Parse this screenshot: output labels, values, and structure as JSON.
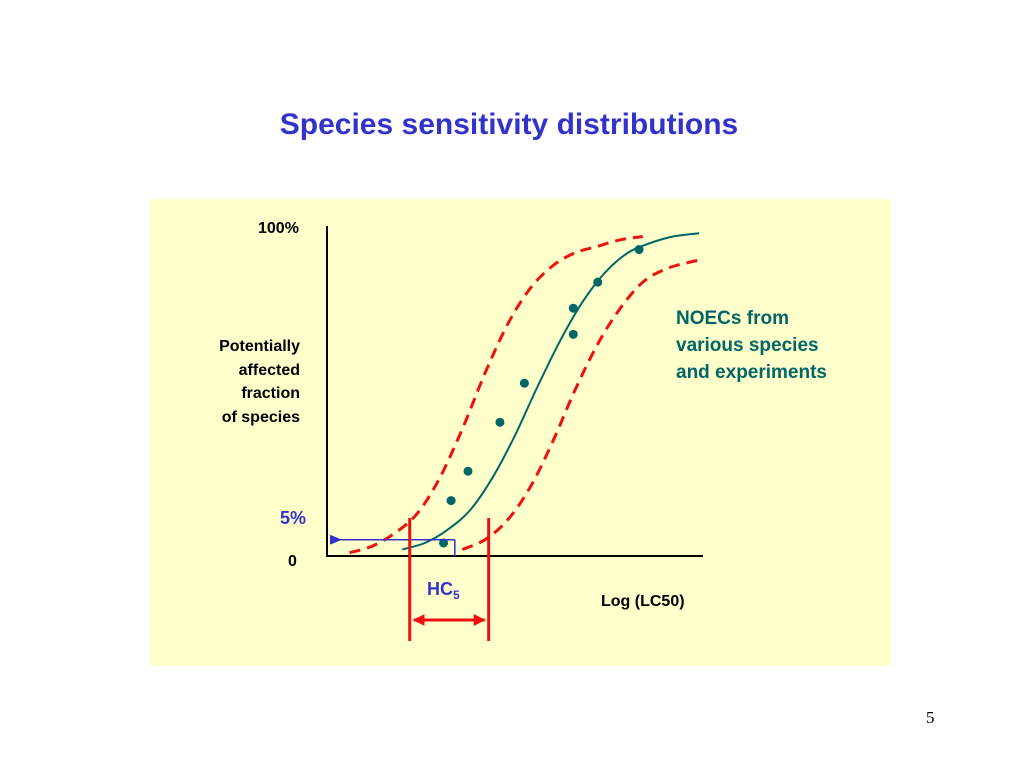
{
  "slide": {
    "title": "Species sensitivity distributions",
    "page_number": "5"
  },
  "colors": {
    "title": "#3333cc",
    "panel_background": "#ffffcc",
    "fitted_curve": "#006666",
    "data_points": "#006666",
    "confidence_band": "#ee1111",
    "hc5_marker": "#ee1111",
    "hc5_guide": "#3333cc"
  },
  "chart_data": {
    "type": "line",
    "title": "",
    "xlabel": "Log (LC50)",
    "ylabel_lines": [
      "Potentially",
      "affected",
      "fraction",
      "of species"
    ],
    "y_ticks": {
      "top": "100%",
      "bottom": "0",
      "marker": "5%"
    },
    "ylim": [
      0,
      100
    ],
    "xlim": [
      0,
      1
    ],
    "x_ticks_shown": false,
    "grid": false,
    "series": [
      {
        "role": "fitted-curve",
        "style": "solid",
        "x": [
          0.2,
          0.26,
          0.32,
          0.38,
          0.44,
          0.5,
          0.56,
          0.62,
          0.68,
          0.74,
          0.8,
          0.86,
          0.92,
          0.99
        ],
        "y": [
          2,
          4,
          8,
          14,
          24,
          37,
          52,
          66,
          78,
          87,
          93,
          96,
          98,
          99
        ]
      },
      {
        "role": "upper-bound",
        "style": "dashed",
        "x": [
          0.06,
          0.12,
          0.18,
          0.24,
          0.3,
          0.36,
          0.42,
          0.48,
          0.54,
          0.6,
          0.66,
          0.72,
          0.78,
          0.84
        ],
        "y": [
          1,
          3,
          7,
          13,
          24,
          39,
          56,
          71,
          82,
          89,
          93,
          95,
          97,
          98
        ]
      },
      {
        "role": "lower-bound",
        "style": "dashed",
        "x": [
          0.36,
          0.42,
          0.48,
          0.54,
          0.6,
          0.66,
          0.72,
          0.78,
          0.84,
          0.9,
          0.96,
          1.0
        ],
        "y": [
          2,
          5,
          11,
          21,
          35,
          51,
          65,
          76,
          84,
          88,
          90,
          91
        ]
      }
    ],
    "scatter": {
      "name": "NOECs from various species and experiments",
      "x": [
        0.31,
        0.33,
        0.375,
        0.46,
        0.525,
        0.655,
        0.655,
        0.72,
        0.83
      ],
      "y": [
        4,
        17,
        26,
        41,
        53,
        68,
        76,
        84,
        94
      ]
    },
    "hc5": {
      "label": "HC",
      "subscript": "5",
      "percent": 5,
      "x": 0.34,
      "interval": [
        0.22,
        0.43
      ]
    },
    "annotation_lines": [
      "NOECs from",
      "various species",
      "and experiments"
    ]
  }
}
